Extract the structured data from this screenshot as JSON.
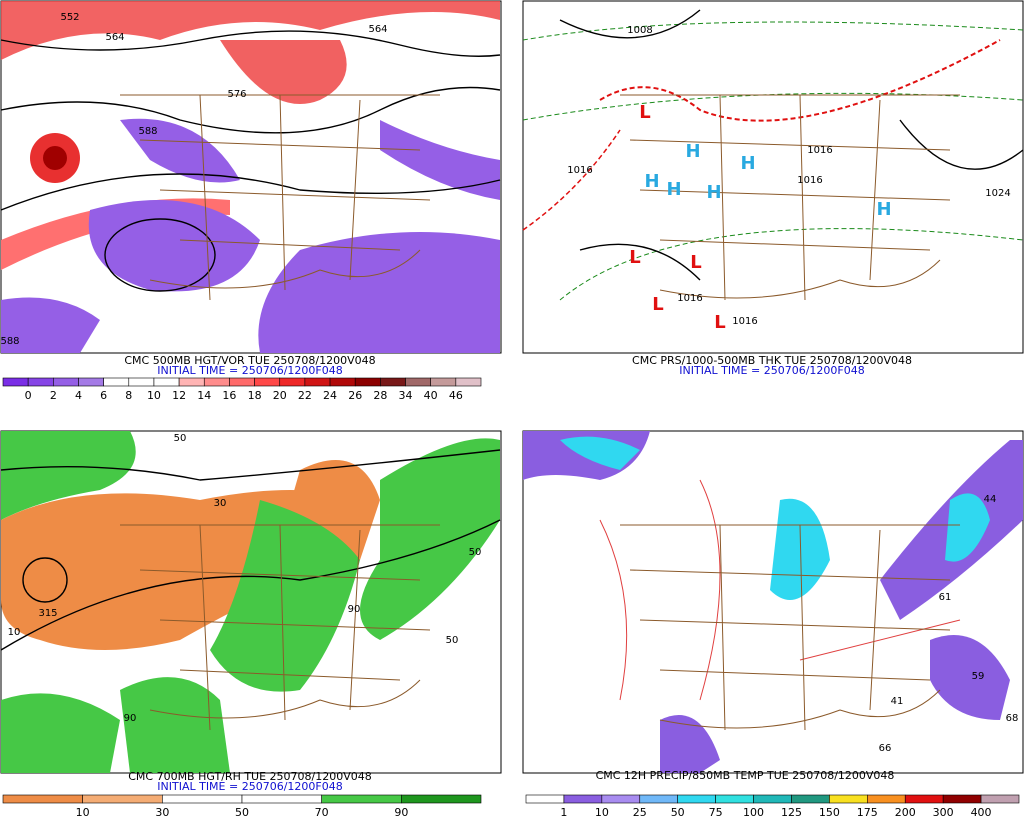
{
  "panels": [
    {
      "title": "CMC 500MB HGT/VOR TUE 250708/1200V048",
      "initial_time": "INITIAL TIME = 250706/1200F048",
      "colorbar": {
        "labels": [
          0,
          2,
          4,
          6,
          8,
          10,
          12,
          14,
          16,
          18,
          20,
          22,
          24,
          26,
          28,
          34,
          40,
          46
        ],
        "colors": [
          "#7a2ee6",
          "#8645e6",
          "#955fe6",
          "#a47ae6",
          "#ffffff",
          "#ffffff",
          "#ffffff",
          "#ffb4b4",
          "#ff8c8c",
          "#ff6a6a",
          "#ff4848",
          "#ee2828",
          "#d01414",
          "#b00808",
          "#8c0000",
          "#781818",
          "#a06868",
          "#c49a9a",
          "#e0c0c8"
        ]
      },
      "map_labels": [
        "552",
        "564",
        "576",
        "588",
        "564",
        "588"
      ]
    },
    {
      "title": "CMC PRS/1000-500MB THK TUE 250708/1200V048",
      "initial_time": "INITIAL TIME = 250706/1200F048",
      "map_labels": [
        "1008",
        "1016",
        "1016",
        "1016",
        "1024",
        "1016",
        "1016",
        "H",
        "H",
        "H",
        "H",
        "H",
        "H",
        "L",
        "L",
        "L",
        "L",
        "L"
      ]
    },
    {
      "title": "CMC 700MB HGT/RH TUE 250708/1200V048",
      "initial_time": "INITIAL TIME = 250706/1200F048",
      "colorbar": {
        "labels": [
          10,
          30,
          50,
          70,
          90
        ],
        "colors": [
          "#ee8c46",
          "#f4ac74",
          "#ffffff",
          "#ffffff",
          "#46c846",
          "#1e961e"
        ]
      },
      "map_labels": [
        "50",
        "50",
        "315",
        "90",
        "90",
        "10",
        "30",
        "50"
      ]
    },
    {
      "title": "CMC 12H PRECIP/850MB TEMP TUE 250708/1200V048",
      "colorbar": {
        "labels": [
          1,
          10,
          25,
          50,
          75,
          100,
          125,
          150,
          175,
          200,
          300,
          400
        ],
        "colors": [
          "#ffffff",
          "#8a5ee0",
          "#a88cf0",
          "#70b8f8",
          "#30d8f0",
          "#30e0e0",
          "#20b8b8",
          "#209880",
          "#f8e020",
          "#f89020",
          "#e01010",
          "#900000",
          "#c0a0b0"
        ]
      },
      "map_labels": [
        "44",
        "61",
        "59",
        "41",
        "66",
        "68"
      ]
    }
  ]
}
